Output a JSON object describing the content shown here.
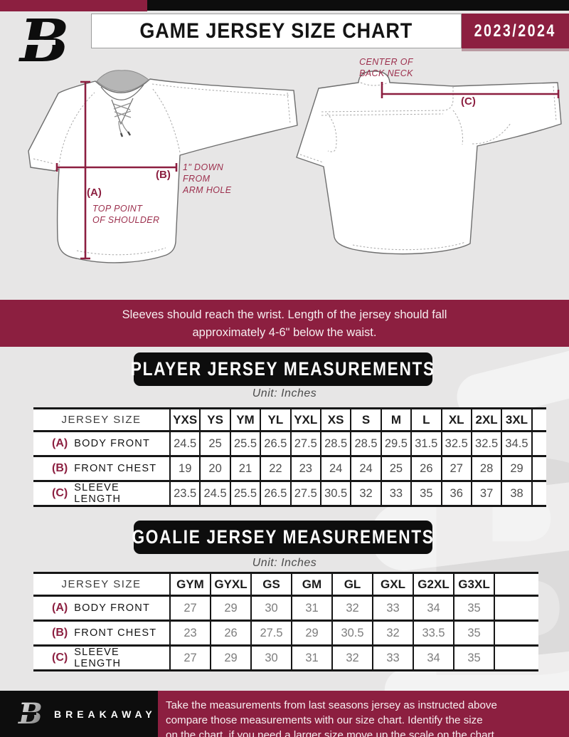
{
  "header": {
    "title": "GAME JERSEY SIZE CHART",
    "season": "2023/2024"
  },
  "diagrams": {
    "back_neck_caption_lines": [
      "CENTER OF",
      "BACK NECK"
    ],
    "label_a": "(A)",
    "label_a_caption_lines": [
      "TOP POINT",
      "OF SHOULDER"
    ],
    "label_b": "(B)",
    "label_b_caption_lines": [
      "1\" DOWN",
      "FROM",
      "ARM HOLE"
    ],
    "label_c": "(C)"
  },
  "notice_lines": [
    "Sleeves should reach the wrist. Length of the jersey should fall",
    "approximately 4-6\" below the waist."
  ],
  "player_section": {
    "title": "PLAYER JERSEY MEASUREMENTS",
    "unit": "Unit: Inches",
    "table": {
      "corner_label": "JERSEY SIZE",
      "sizes": [
        "YXS",
        "YS",
        "YM",
        "YL",
        "YXL",
        "XS",
        "S",
        "M",
        "L",
        "XL",
        "2XL",
        "3XL"
      ],
      "rows": [
        {
          "key": "(A)",
          "label": "BODY FRONT",
          "values": [
            "24.5",
            "25",
            "25.5",
            "26.5",
            "27.5",
            "28.5",
            "28.5",
            "29.5",
            "31.5",
            "32.5",
            "32.5",
            "34.5"
          ]
        },
        {
          "key": "(B)",
          "label": "FRONT CHEST",
          "values": [
            "19",
            "20",
            "21",
            "22",
            "23",
            "24",
            "24",
            "25",
            "26",
            "27",
            "28",
            "29"
          ]
        },
        {
          "key": "(C)",
          "label": "SLEEVE LENGTH",
          "values": [
            "23.5",
            "24.5",
            "25.5",
            "26.5",
            "27.5",
            "30.5",
            "32",
            "33",
            "35",
            "36",
            "37",
            "38"
          ]
        }
      ]
    }
  },
  "goalie_section": {
    "title": "GOALIE JERSEY MEASUREMENTS",
    "unit": "Unit: Inches",
    "table": {
      "corner_label": "JERSEY SIZE",
      "sizes": [
        "GYM",
        "GYXL",
        "GS",
        "GM",
        "GL",
        "GXL",
        "G2XL",
        "G3XL"
      ],
      "rows": [
        {
          "key": "(A)",
          "label": "BODY FRONT",
          "values": [
            "27",
            "29",
            "30",
            "31",
            "32",
            "33",
            "34",
            "35"
          ]
        },
        {
          "key": "(B)",
          "label": "FRONT CHEST",
          "values": [
            "23",
            "26",
            "27.5",
            "29",
            "30.5",
            "32",
            "33.5",
            "35"
          ]
        },
        {
          "key": "(C)",
          "label": "SLEEVE LENGTH",
          "values": [
            "27",
            "29",
            "30",
            "31",
            "32",
            "33",
            "34",
            "35"
          ]
        }
      ]
    }
  },
  "footer": {
    "brand": "BREAKAWAY",
    "lines": [
      "Take the measurements from last seasons jersey as instructed above",
      "compare those measurements  with our size chart. Identify the size",
      "on the chart, if you need a larger size move up the scale on the chart"
    ]
  },
  "colors": {
    "maroon": "#8C1F40",
    "black": "#0D0D0D",
    "page_background": "#E7E6E6",
    "watermark_gray": "#DCDBDB"
  },
  "watermark_letter": "B"
}
